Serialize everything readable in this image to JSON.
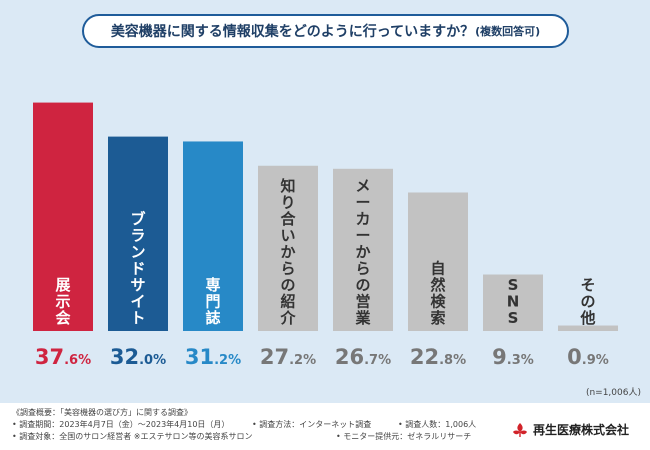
{
  "title": {
    "main": "美容機器に関する情報収集をどのように行っていますか？",
    "sub": "(複数回答可)"
  },
  "chart_data": {
    "type": "bar",
    "categories": [
      "展示会",
      "ブランドサイト",
      "専門誌",
      "知り合いからの紹介",
      "メーカーからの営業",
      "自然検索",
      "SNS",
      "その他"
    ],
    "values": [
      37.6,
      32.0,
      31.2,
      27.2,
      26.7,
      22.8,
      9.3,
      0.9
    ],
    "value_labels": [
      {
        "int": "37",
        "dec": ".6%"
      },
      {
        "int": "32",
        "dec": ".0%"
      },
      {
        "int": "31",
        "dec": ".2%"
      },
      {
        "int": "27",
        "dec": ".2%"
      },
      {
        "int": "26",
        "dec": ".7%"
      },
      {
        "int": "22",
        "dec": ".8%"
      },
      {
        "int": "9",
        "dec": ".3%"
      },
      {
        "int": "0",
        "dec": ".9%"
      }
    ],
    "colors": [
      "#cf2440",
      "#1c5b94",
      "#2789c7",
      "#c2c2c2",
      "#c2c2c2",
      "#c2c2c2",
      "#c2c2c2",
      "#c2c2c2"
    ],
    "label_colors": [
      "#ffffff",
      "#ffffff",
      "#ffffff",
      "#333333",
      "#333333",
      "#333333",
      "#333333",
      "#333333"
    ],
    "value_colors": [
      "#cf2440",
      "#1c5b94",
      "#2789c7",
      "#777777",
      "#777777",
      "#777777",
      "#777777",
      "#777777"
    ],
    "unit": "%",
    "ylim": [
      0,
      40
    ],
    "grid": false,
    "legend": "none"
  },
  "sample_note": "(n=1,006人)",
  "footer": {
    "overview": "《調査概要：「美容機器の選び方」に関する調査》",
    "period": "• 調査期間：2023年4月7日（金）～2023年4月10日（月）",
    "method": "• 調査方法：インターネット調査",
    "count": "• 調査人数：1,006人",
    "target": "• 調査対象：全国のサロン経営者 ※エステサロン等の美容系サロン",
    "provider": "• モニター提供元：ゼネラルリサーチ"
  },
  "logo": {
    "text": "再生医療株式会社"
  },
  "colors": {
    "background": "#dbe9f5",
    "accent": "#1f5c9a",
    "title": "#1f3f66"
  }
}
